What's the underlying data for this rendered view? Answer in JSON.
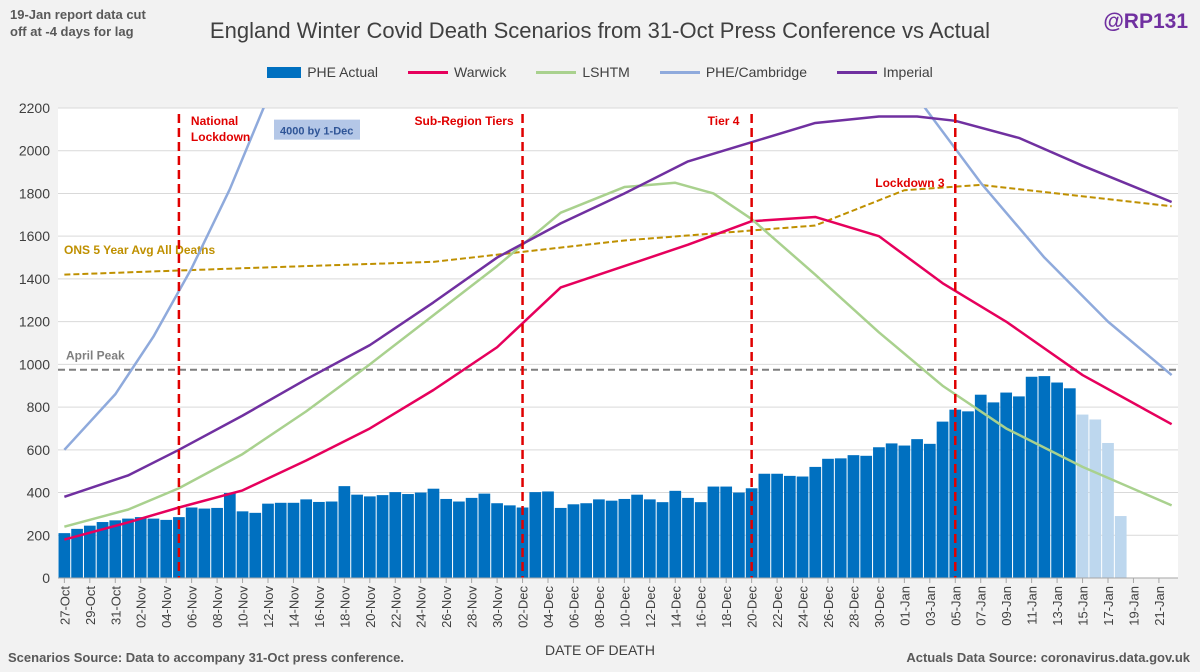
{
  "header": {
    "note": "19-Jan report data cut off at -4 days for lag",
    "title": "England Winter Covid Death Scenarios from 31-Oct Press Conference vs Actual",
    "handle": "@RP131"
  },
  "footer": {
    "left": "Scenarios Source: Data to accompany 31-Oct press conference.",
    "right": "Actuals Data Source: coronavirus.data.gov.uk"
  },
  "colors": {
    "phe_actual": "#0070c0",
    "phe_actual_light": "#bdd7ee",
    "warwick": "#e6005c",
    "lshtm": "#a9d18e",
    "phe_cambridge": "#8faadc",
    "imperial": "#7030a0",
    "ons": "#bf9000",
    "april_peak": "#7f7f7f",
    "events": "#e00000"
  },
  "chart_data": {
    "type": "bar",
    "title": "England Winter Covid Death Scenarios from 31-Oct Press Conference vs Actual",
    "xlabel": "DATE OF DEATH",
    "ylabel": "",
    "ylim": [
      0,
      2200
    ],
    "yticks": [
      0,
      200,
      400,
      600,
      800,
      1000,
      1200,
      1400,
      1600,
      1800,
      2000,
      2200
    ],
    "grid": true,
    "legend_position": "top",
    "x_start": "2020-10-27",
    "x_end": "2021-01-22",
    "xtick_labels": [
      "27-Oct",
      "29-Oct",
      "31-Oct",
      "02-Nov",
      "04-Nov",
      "06-Nov",
      "08-Nov",
      "10-Nov",
      "12-Nov",
      "14-Nov",
      "16-Nov",
      "18-Nov",
      "20-Nov",
      "22-Nov",
      "24-Nov",
      "26-Nov",
      "28-Nov",
      "30-Nov",
      "02-Dec",
      "04-Dec",
      "06-Dec",
      "08-Dec",
      "10-Dec",
      "12-Dec",
      "14-Dec",
      "16-Dec",
      "18-Dec",
      "20-Dec",
      "22-Dec",
      "24-Dec",
      "26-Dec",
      "28-Dec",
      "30-Dec",
      "01-Jan",
      "03-Jan",
      "05-Jan",
      "07-Jan",
      "09-Jan",
      "11-Jan",
      "13-Jan",
      "15-Jan",
      "17-Jan",
      "19-Jan",
      "21-Jan"
    ],
    "bars": {
      "name": "PHE Actual",
      "values": [
        210,
        230,
        245,
        262,
        270,
        278,
        285,
        278,
        272,
        285,
        330,
        325,
        328,
        398,
        312,
        305,
        348,
        352,
        352,
        368,
        356,
        358,
        430,
        390,
        382,
        388,
        402,
        393,
        400,
        418,
        370,
        358,
        375,
        395,
        350,
        340,
        330,
        402,
        405,
        328,
        345,
        350,
        368,
        362,
        370,
        390,
        368,
        355,
        408,
        375,
        355,
        428,
        428,
        400,
        420,
        488,
        488,
        478,
        475,
        520,
        558,
        560,
        575,
        572,
        612,
        630,
        620,
        650,
        628,
        732,
        788,
        780,
        858,
        822,
        868,
        850,
        942,
        945,
        915,
        888
      ]
    },
    "bars_incomplete": {
      "name": "PHE Actual (incomplete)",
      "values": [
        765,
        742,
        632,
        290
      ]
    },
    "series": [
      {
        "name": "Warwick",
        "x": [
          "2020-10-27",
          "2020-11-01",
          "2020-11-05",
          "2020-11-10",
          "2020-11-15",
          "2020-11-20",
          "2020-11-25",
          "2020-11-30",
          "2020-12-05",
          "2020-12-10",
          "2020-12-15",
          "2020-12-20",
          "2020-12-25",
          "2020-12-30",
          "2021-01-04",
          "2021-01-09",
          "2021-01-15",
          "2021-01-22"
        ],
        "values": [
          180,
          260,
          330,
          410,
          550,
          700,
          880,
          1080,
          1360,
          1460,
          1560,
          1670,
          1690,
          1600,
          1380,
          1200,
          950,
          720
        ]
      },
      {
        "name": "LSHTM",
        "x": [
          "2020-10-27",
          "2020-11-01",
          "2020-11-05",
          "2020-11-10",
          "2020-11-15",
          "2020-11-20",
          "2020-11-25",
          "2020-11-30",
          "2020-12-05",
          "2020-12-10",
          "2020-12-14",
          "2020-12-17",
          "2020-12-20",
          "2020-12-25",
          "2020-12-30",
          "2021-01-04",
          "2021-01-09",
          "2021-01-15",
          "2021-01-22"
        ],
        "values": [
          240,
          320,
          420,
          580,
          780,
          1000,
          1230,
          1460,
          1710,
          1830,
          1850,
          1800,
          1680,
          1420,
          1150,
          900,
          700,
          520,
          340
        ]
      },
      {
        "name": "PHE/Cambridge",
        "x": [
          "2020-10-27",
          "2020-10-31",
          "2020-11-03",
          "2020-11-06",
          "2020-11-09",
          "2020-11-12",
          "2021-01-02",
          "2021-01-07",
          "2021-01-12",
          "2021-01-17",
          "2021-01-22"
        ],
        "values": [
          600,
          860,
          1130,
          1450,
          1820,
          2250,
          2250,
          1850,
          1500,
          1200,
          950
        ]
      },
      {
        "name": "Imperial",
        "x": [
          "2020-10-27",
          "2020-11-01",
          "2020-11-05",
          "2020-11-10",
          "2020-11-15",
          "2020-11-20",
          "2020-11-25",
          "2020-11-30",
          "2020-12-05",
          "2020-12-10",
          "2020-12-15",
          "2020-12-20",
          "2020-12-25",
          "2020-12-30",
          "2021-01-02",
          "2021-01-05",
          "2021-01-10",
          "2021-01-15",
          "2021-01-22"
        ],
        "values": [
          380,
          480,
          600,
          760,
          930,
          1090,
          1290,
          1500,
          1660,
          1800,
          1950,
          2040,
          2130,
          2160,
          2160,
          2140,
          2060,
          1930,
          1760
        ]
      }
    ],
    "ons_5yr_avg": {
      "name": "ONS 5 Year Avg All Deaths",
      "x": [
        "2020-10-27",
        "2020-11-10",
        "2020-11-25",
        "2020-12-10",
        "2020-12-25",
        "2021-01-01",
        "2021-01-07",
        "2021-01-22"
      ],
      "values": [
        1420,
        1450,
        1480,
        1580,
        1650,
        1815,
        1840,
        1740
      ]
    },
    "april_peak": {
      "label": "April Peak",
      "value": 975
    },
    "events": [
      {
        "label": "National Lockdown",
        "date": "2020-11-05"
      },
      {
        "label": "Sub-Region Tiers",
        "date": "2020-12-02"
      },
      {
        "label": "Tier 4",
        "date": "2020-12-20"
      },
      {
        "label": "Lockdown 3",
        "date": "2021-01-05"
      }
    ],
    "annotations": [
      {
        "text": "4000 by 1-Dec"
      },
      {
        "text": "ONS 5 Year Avg All Deaths"
      }
    ]
  }
}
